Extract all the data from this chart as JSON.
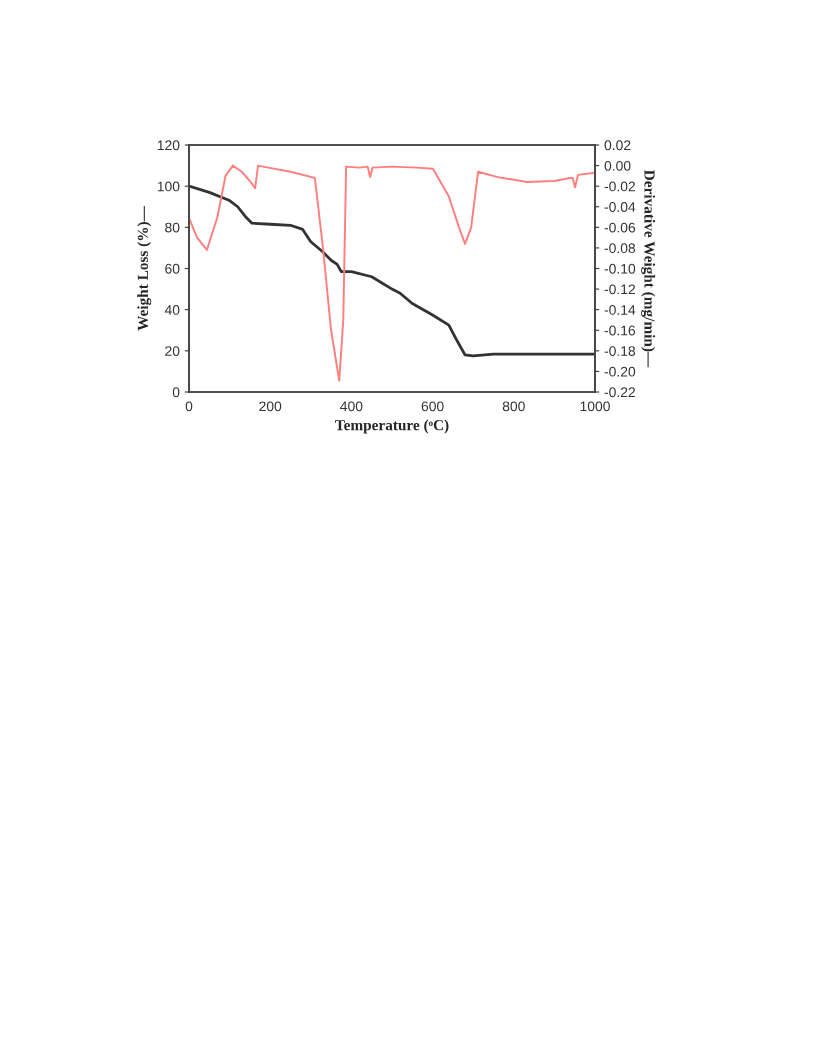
{
  "chart_data": {
    "type": "line",
    "xlabel": "Temperature (ᵒC)",
    "ylabel": "Weight Loss (%)—",
    "y2label": "Derivative Weight (mg/min)—",
    "xlim": [
      0,
      1000
    ],
    "xticks": [
      0,
      200,
      400,
      600,
      800,
      1000
    ],
    "ylim": [
      0,
      120
    ],
    "yticks": [
      0,
      20,
      40,
      60,
      80,
      100,
      120
    ],
    "y2lim": [
      -0.22,
      0.02
    ],
    "y2ticks": [
      {
        "value": -0.22,
        "label": "-0.22"
      },
      {
        "value": -0.2,
        "label": "-0.20"
      },
      {
        "value": -0.18,
        "label": "-0.18"
      },
      {
        "value": -0.16,
        "label": "-0.16"
      },
      {
        "value": -0.14,
        "label": "-0.14"
      },
      {
        "value": -0.12,
        "label": "-0.12"
      },
      {
        "value": -0.1,
        "label": "-0.10"
      },
      {
        "value": -0.08,
        "label": "-0.08"
      },
      {
        "value": -0.06,
        "label": "-0.06"
      },
      {
        "value": -0.04,
        "label": "-0.04"
      },
      {
        "value": -0.02,
        "label": "-0.02"
      },
      {
        "value": 0,
        "label": "0.00"
      },
      {
        "value": 0.02,
        "label": "0.02"
      }
    ],
    "grid": false,
    "legend": false,
    "marker": "none",
    "line_style": "solid",
    "series": [
      {
        "color": "#333333",
        "axis": "y",
        "x": [
          0,
          50,
          100,
          120,
          140,
          155,
          200,
          250,
          280,
          300,
          330,
          350,
          365,
          375,
          400,
          450,
          500,
          520,
          550,
          600,
          640,
          660,
          680,
          700,
          750,
          1000
        ],
        "values": [
          100,
          97,
          93,
          90,
          85,
          82,
          81.5,
          81,
          79,
          73,
          68,
          64,
          62,
          58.5,
          58.5,
          56,
          50,
          48,
          43,
          37.4,
          32.5,
          25,
          18,
          17.5,
          18.4,
          18.4
        ]
      },
      {
        "color": "#ff7f7f",
        "axis": "y2",
        "x": [
          0,
          20,
          44,
          70,
          90,
          108,
          130,
          150,
          163,
          170,
          195,
          250,
          300,
          310,
          330,
          350,
          370,
          380,
          387,
          420,
          440,
          446,
          452,
          500,
          560,
          601,
          640,
          665,
          680,
          695,
          712,
          758,
          832,
          900,
          938,
          945,
          951,
          958,
          1000
        ],
        "values": [
          -0.051,
          -0.07,
          -0.082,
          -0.05,
          -0.01,
          0.0,
          -0.006,
          -0.015,
          -0.022,
          0.0,
          -0.002,
          -0.006,
          -0.011,
          -0.012,
          -0.08,
          -0.16,
          -0.209,
          -0.15,
          -0.001,
          -0.002,
          -0.001,
          -0.011,
          -0.002,
          -0.001,
          -0.002,
          -0.003,
          -0.03,
          -0.06,
          -0.076,
          -0.06,
          -0.006,
          -0.011,
          -0.016,
          -0.015,
          -0.012,
          -0.012,
          -0.021,
          -0.009,
          -0.007
        ]
      }
    ]
  }
}
